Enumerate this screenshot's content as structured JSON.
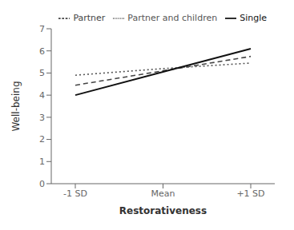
{
  "chart_data": {
    "type": "line",
    "xlabel": "Restorativeness",
    "ylabel": "Well-being",
    "categories": [
      "-1 SD",
      "Mean",
      "+1 SD"
    ],
    "series": [
      {
        "name": "Partner and children",
        "color": "#555555",
        "line_style": "dotted",
        "values": [
          4.9,
          5.2,
          5.45
        ]
      },
      {
        "name": "Partner",
        "color": "#444444",
        "line_style": "dashed",
        "values": [
          4.45,
          5.1,
          5.75
        ]
      },
      {
        "name": "Single",
        "color": "#111111",
        "line_style": "solid",
        "values": [
          4.0,
          5.05,
          6.1
        ]
      }
    ],
    "ylim": [
      0,
      7
    ],
    "yticks": [
      0,
      1,
      2,
      3,
      4,
      5,
      6,
      7
    ],
    "grid": false,
    "legend": "upper right"
  }
}
